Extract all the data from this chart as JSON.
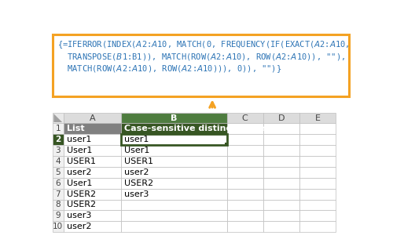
{
  "formula_lines": [
    "{=IFERROR(INDEX($A$2:$A$10, MATCH(0, FREQUENCY(IF(EXACT($A$2:$A$10,",
    "  TRANSPOSE($B$1:B1)), MATCH(ROW($A$2:$A$10), ROW($A$2:$A$10)), \"\"),",
    "  MATCH(ROW($A$2:$A$10), ROW($A$2:$A$10))), 0)), \"\")}"
  ],
  "col_a_data": [
    "user1",
    "User1",
    "USER1",
    "user2",
    "User1",
    "USER2",
    "USER2",
    "user3",
    "user2"
  ],
  "col_b_data": [
    "user1",
    "User1",
    "USER1",
    "user2",
    "USER2",
    "user3",
    "",
    "",
    ""
  ],
  "formula_box_color": "#F4A223",
  "formula_text_color": "#2E75B6",
  "arrow_color": "#F4A223",
  "grid_color": "#BEBEBE",
  "header_row_bg": "#808080",
  "header_row_text": "#FFFFFF",
  "col_b_header_bg": "#375623",
  "col_b_header_text": "#FFFFFF",
  "col_letter_bg": "#DCDCDC",
  "col_letter_b_bg": "#4E7C3F",
  "row_num_bg": "#F0F0F0",
  "row_num_active_bg": "#375623",
  "row_num_active_text": "#FFFFFF",
  "active_cell_border": "#375623",
  "cell_bg": "#FFFFFF"
}
